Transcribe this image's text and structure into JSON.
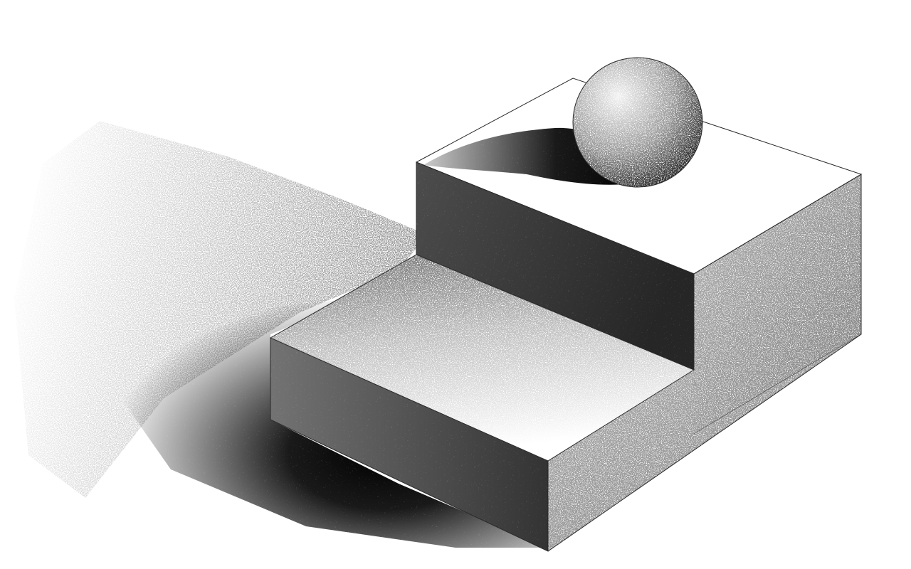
{
  "scene": {
    "style": "stippled-grayscale",
    "colors": {
      "paper": "#ffffff",
      "ink": "#111111",
      "edge": "#2a2a2a"
    },
    "objects": [
      {
        "name": "lower-step",
        "kind": "box"
      },
      {
        "name": "upper-step",
        "kind": "box"
      },
      {
        "name": "sphere",
        "kind": "ball"
      },
      {
        "name": "cast-shadow",
        "kind": "shadow"
      }
    ]
  }
}
